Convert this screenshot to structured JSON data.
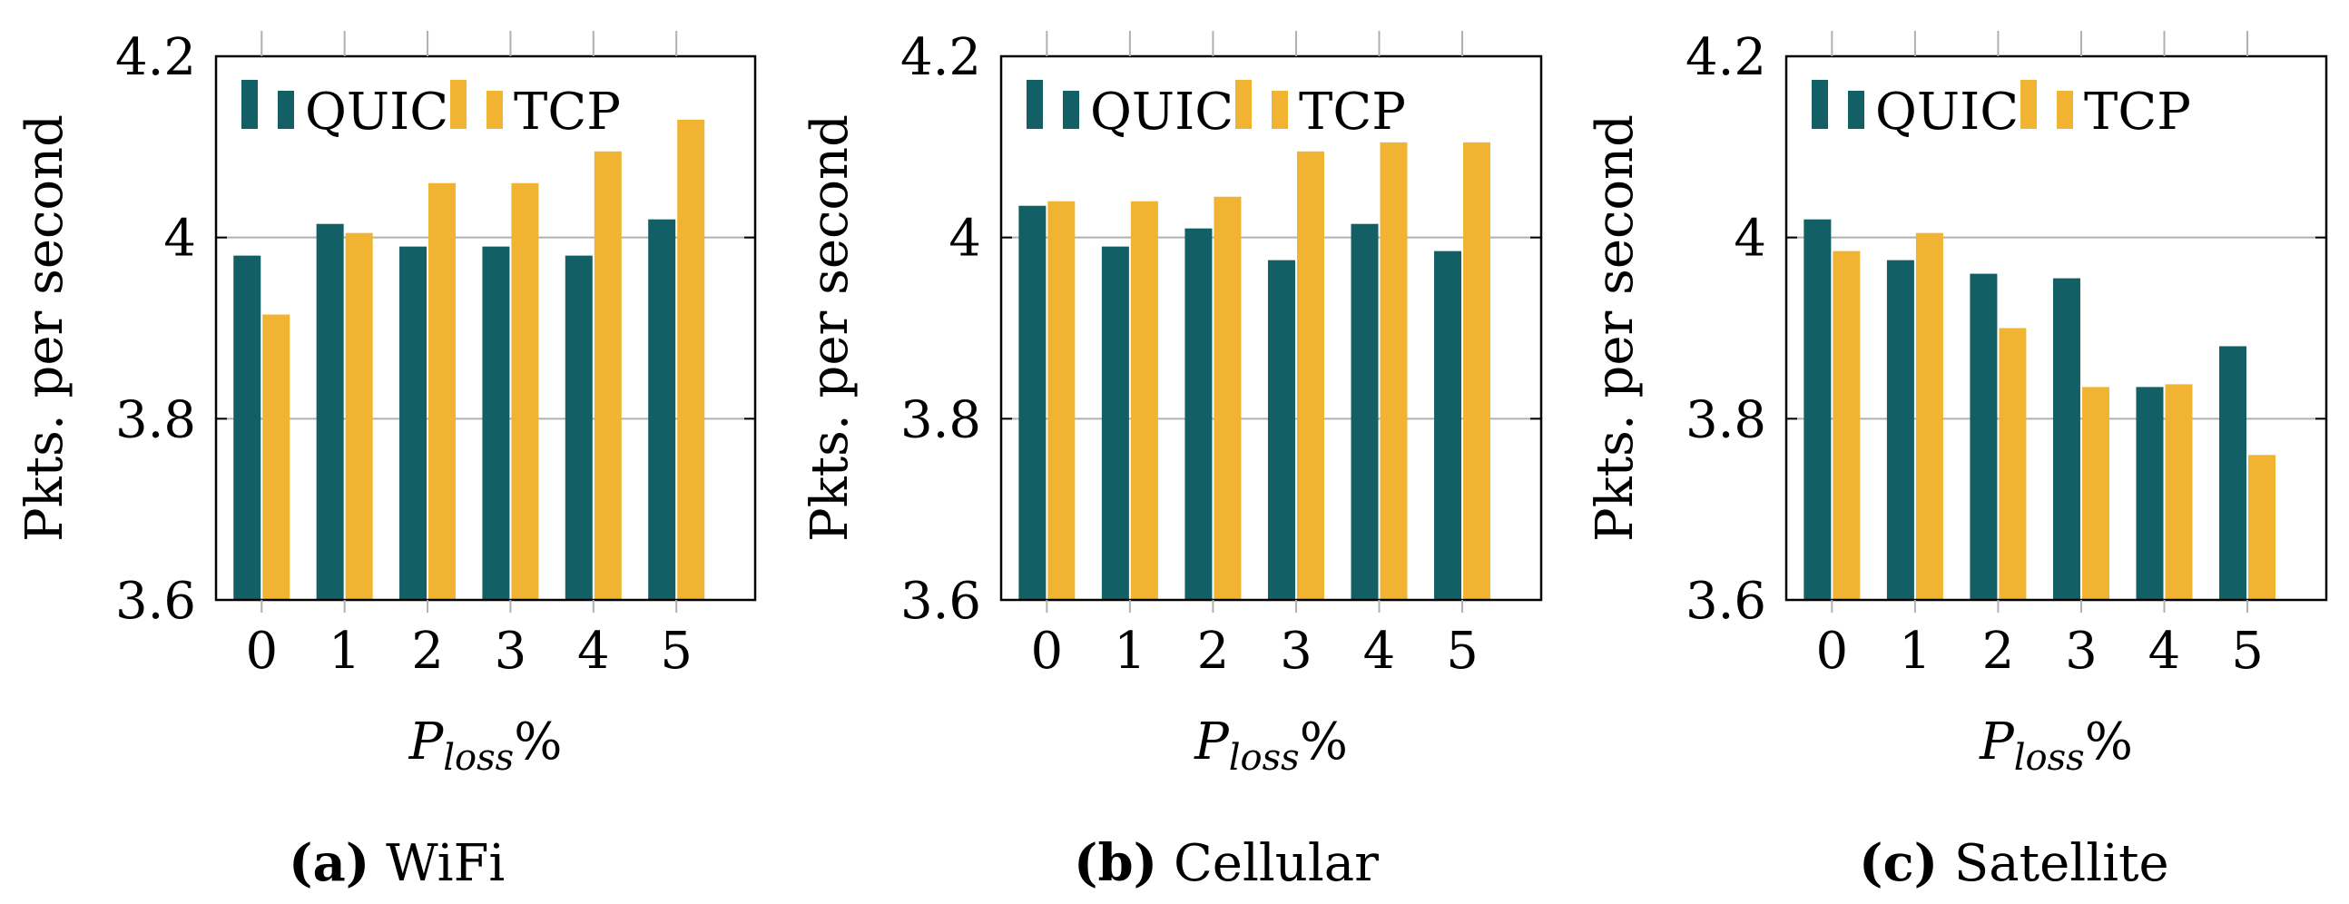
{
  "colors": {
    "quic": "#135f66",
    "tcp": "#f0b432",
    "grid": "#b0b0b0",
    "axis": "#000000"
  },
  "chart_data": [
    {
      "type": "bar",
      "id": "a",
      "caption_tag": "(a)",
      "caption_text": "WiFi",
      "categories": [
        "0",
        "1",
        "2",
        "3",
        "4",
        "5"
      ],
      "ylabel": "Pkts. per second",
      "xlabel_main": "P",
      "xlabel_sub": "loss",
      "xlabel_suffix": "%",
      "ylim": [
        3.6,
        4.2
      ],
      "yticks": [
        3.6,
        3.8,
        4.0,
        4.2
      ],
      "ytick_labels": [
        "3.6",
        "3.8",
        "4",
        "4.2"
      ],
      "legend": [
        "QUIC",
        "TCP"
      ],
      "series": [
        {
          "name": "QUIC",
          "values": [
            3.98,
            4.015,
            3.99,
            3.99,
            3.98,
            4.02
          ]
        },
        {
          "name": "TCP",
          "values": [
            3.915,
            4.005,
            4.06,
            4.06,
            4.095,
            4.13
          ]
        }
      ]
    },
    {
      "type": "bar",
      "id": "b",
      "caption_tag": "(b)",
      "caption_text": "Cellular",
      "categories": [
        "0",
        "1",
        "2",
        "3",
        "4",
        "5"
      ],
      "ylabel": "Pkts. per second",
      "xlabel_main": "P",
      "xlabel_sub": "loss",
      "xlabel_suffix": "%",
      "ylim": [
        3.6,
        4.2
      ],
      "yticks": [
        3.6,
        3.8,
        4.0,
        4.2
      ],
      "ytick_labels": [
        "3.6",
        "3.8",
        "4",
        "4.2"
      ],
      "legend": [
        "QUIC",
        "TCP"
      ],
      "series": [
        {
          "name": "QUIC",
          "values": [
            4.035,
            3.99,
            4.01,
            3.975,
            4.015,
            3.985
          ]
        },
        {
          "name": "TCP",
          "values": [
            4.04,
            4.04,
            4.045,
            4.095,
            4.105,
            4.105
          ]
        }
      ]
    },
    {
      "type": "bar",
      "id": "c",
      "caption_tag": "(c)",
      "caption_text": "Satellite",
      "categories": [
        "0",
        "1",
        "2",
        "3",
        "4",
        "5"
      ],
      "ylabel": "Pkts. per second",
      "xlabel_main": "P",
      "xlabel_sub": "loss",
      "xlabel_suffix": "%",
      "ylim": [
        3.6,
        4.2
      ],
      "yticks": [
        3.6,
        3.8,
        4.0,
        4.2
      ],
      "ytick_labels": [
        "3.6",
        "3.8",
        "4",
        "4.2"
      ],
      "legend": [
        "QUIC",
        "TCP"
      ],
      "series": [
        {
          "name": "QUIC",
          "values": [
            4.02,
            3.975,
            3.96,
            3.955,
            3.835,
            3.88
          ]
        },
        {
          "name": "TCP",
          "values": [
            3.985,
            4.005,
            3.9,
            3.835,
            3.838,
            3.76
          ]
        }
      ]
    }
  ]
}
